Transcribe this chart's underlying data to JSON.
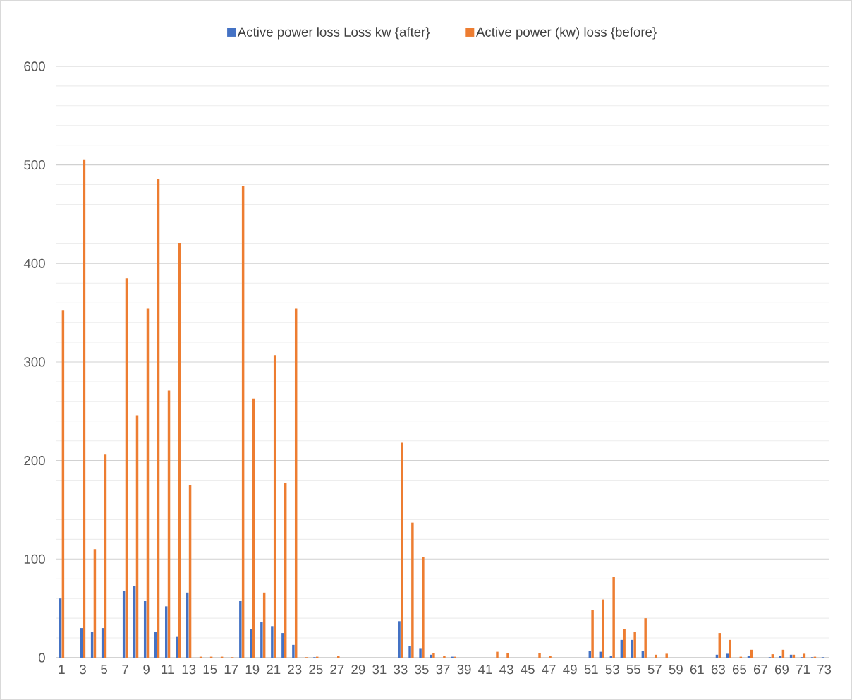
{
  "chart_data": {
    "type": "bar",
    "categories": [
      "1",
      null,
      "3",
      null,
      "5",
      null,
      "7",
      null,
      "9",
      null,
      "11",
      null,
      "13",
      null,
      "15",
      null,
      "17",
      null,
      "19",
      null,
      "21",
      null,
      "23",
      null,
      "25",
      null,
      "27",
      null,
      "29",
      null,
      "31",
      null,
      "33",
      null,
      "35",
      null,
      "37",
      null,
      "39",
      null,
      "41",
      null,
      "43",
      null,
      "45",
      null,
      "47",
      null,
      "49",
      null,
      "51",
      null,
      "53",
      null,
      "55",
      null,
      "57",
      null,
      "59",
      null,
      "61",
      null,
      "63",
      null,
      "65",
      null,
      "67",
      null,
      "69",
      null,
      "71",
      null,
      "73"
    ],
    "series": [
      {
        "name": "Active power loss Loss kw {after}",
        "color": "#4472c4",
        "values": [
          60,
          0,
          30,
          26,
          30,
          0,
          68,
          73,
          58,
          26,
          52,
          21,
          66,
          0,
          0,
          0,
          0,
          58,
          29,
          36,
          32,
          25,
          13,
          0,
          0.5,
          0,
          0,
          0,
          0,
          0,
          0,
          0,
          37,
          12,
          9,
          3,
          0,
          1,
          0,
          0,
          0,
          0,
          0,
          0,
          0,
          0,
          0,
          0,
          0,
          0,
          7,
          6,
          1.5,
          18,
          18,
          7,
          0,
          0,
          0,
          0,
          0,
          0,
          3,
          4,
          0,
          2,
          0,
          0.5,
          2,
          3,
          0.5,
          0.5,
          0.5
        ]
      },
      {
        "name": "Active power (kw) loss {before}",
        "color": "#ed7d31",
        "values": [
          352,
          0,
          505,
          110,
          206,
          0,
          385,
          246,
          354,
          486,
          271,
          421,
          175,
          1,
          1,
          1,
          0.5,
          479,
          263,
          66,
          307,
          177,
          354,
          0.5,
          1,
          0,
          1.5,
          0,
          0,
          0,
          0,
          0,
          218,
          137,
          102,
          5,
          1.5,
          1,
          0,
          0,
          0,
          6,
          5,
          0,
          0,
          5,
          1.5,
          0,
          0,
          0,
          48,
          59,
          82,
          29,
          26,
          40,
          3,
          4,
          0,
          0,
          0,
          0,
          25,
          18,
          1,
          8,
          0,
          3.5,
          8,
          3,
          4,
          1,
          0
        ]
      }
    ],
    "ylim": [
      0,
      600
    ],
    "yticks": [
      0,
      100,
      200,
      300,
      400,
      500,
      600
    ],
    "grid": "y",
    "legend": "top"
  }
}
